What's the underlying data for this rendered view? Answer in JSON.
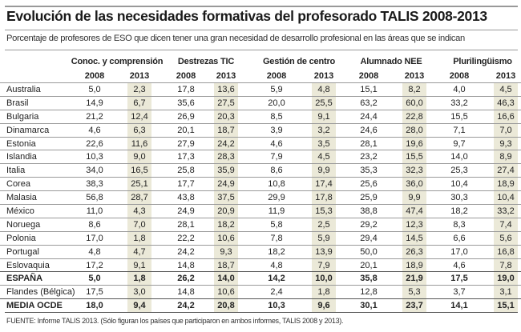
{
  "title": "Evolución de las necesidades formativas del profesorado TALIS 2008-2013",
  "subtitle": "Porcentaje de profesores de ESO que dicen tener una gran necesidad de desarrollo profesional en las áreas que se indican",
  "groups": [
    "Conoc. y comprensión",
    "Destrezas TIC",
    "Gestión de centro",
    "Alumnado NEE",
    "Plurilingüismo"
  ],
  "years": [
    "2008",
    "2013"
  ],
  "rows": [
    {
      "name": "Australia",
      "v": [
        "5,0",
        "2,3",
        "17,8",
        "13,6",
        "5,9",
        "4,8",
        "15,1",
        "8,2",
        "4,0",
        "4,5"
      ]
    },
    {
      "name": "Brasil",
      "v": [
        "14,9",
        "6,7",
        "35,6",
        "27,5",
        "20,0",
        "25,5",
        "63,2",
        "60,0",
        "33,2",
        "46,3"
      ]
    },
    {
      "name": "Bulgaria",
      "v": [
        "21,2",
        "12,4",
        "26,9",
        "20,3",
        "8,5",
        "9,1",
        "24,4",
        "22,8",
        "15,5",
        "16,6"
      ]
    },
    {
      "name": "Dinamarca",
      "v": [
        "4,6",
        "6,3",
        "20,1",
        "18,7",
        "3,9",
        "3,2",
        "24,6",
        "28,0",
        "7,1",
        "7,0"
      ]
    },
    {
      "name": "Estonia",
      "v": [
        "22,6",
        "11,6",
        "27,9",
        "24,2",
        "4,6",
        "3,5",
        "28,1",
        "19,6",
        "9,7",
        "9,3"
      ]
    },
    {
      "name": "Islandia",
      "v": [
        "10,3",
        "9,0",
        "17,3",
        "28,3",
        "7,9",
        "4,5",
        "23,2",
        "15,5",
        "14,0",
        "8,9"
      ]
    },
    {
      "name": "Italia",
      "v": [
        "34,0",
        "16,5",
        "25,8",
        "35,9",
        "8,6",
        "9,9",
        "35,3",
        "32,3",
        "25,3",
        "27,4"
      ]
    },
    {
      "name": "Corea",
      "v": [
        "38,3",
        "25,1",
        "17,7",
        "24,9",
        "10,8",
        "17,4",
        "25,6",
        "36,0",
        "10,4",
        "18,9"
      ]
    },
    {
      "name": "Malasia",
      "v": [
        "56,8",
        "28,7",
        "43,8",
        "37,5",
        "29,9",
        "17,8",
        "25,9",
        "9,9",
        "30,3",
        "10,4"
      ]
    },
    {
      "name": "México",
      "v": [
        "11,0",
        "4,3",
        "24,9",
        "20,9",
        "11,9",
        "15,3",
        "38,8",
        "47,4",
        "18,2",
        "33,2"
      ]
    },
    {
      "name": "Noruega",
      "v": [
        "8,6",
        "7,0",
        "28,1",
        "18,2",
        "5,8",
        "2,5",
        "29,2",
        "12,3",
        "8,3",
        "7,4"
      ]
    },
    {
      "name": "Polonia",
      "v": [
        "17,0",
        "1,8",
        "22,2",
        "10,6",
        "7,8",
        "5,9",
        "29,4",
        "14,5",
        "6,6",
        "5,6"
      ]
    },
    {
      "name": "Portugal",
      "v": [
        "4,8",
        "4,7",
        "24,2",
        "9,3",
        "18,2",
        "13,9",
        "50,0",
        "26,3",
        "17,0",
        "16,8"
      ]
    },
    {
      "name": "Eslovaquia",
      "v": [
        "17,2",
        "9,1",
        "14,8",
        "18,7",
        "4,8",
        "7,9",
        "20,1",
        "18,9",
        "4,6",
        "7,8"
      ]
    },
    {
      "name": "ESPAÑA",
      "bold": true,
      "v": [
        "5,0",
        "1,8",
        "26,2",
        "14,0",
        "14,2",
        "10,0",
        "35,8",
        "21,9",
        "17,5",
        "19,0"
      ]
    },
    {
      "name": "Flandes (Bélgica)",
      "v": [
        "17,5",
        "3,0",
        "14,8",
        "10,6",
        "2,4",
        "1,8",
        "12,8",
        "5,3",
        "3,7",
        "3,1"
      ]
    },
    {
      "name": "MEDIA OCDE",
      "bold": true,
      "v": [
        "18,0",
        "9,4",
        "24,2",
        "20,8",
        "10,3",
        "9,6",
        "30,1",
        "23,7",
        "14,1",
        "15,1"
      ]
    }
  ],
  "footer": "FUENTE: Informe TALIS 2013. (Sólo figuran los países que participaron en ambos informes, TALIS 2008 y 2013)."
}
